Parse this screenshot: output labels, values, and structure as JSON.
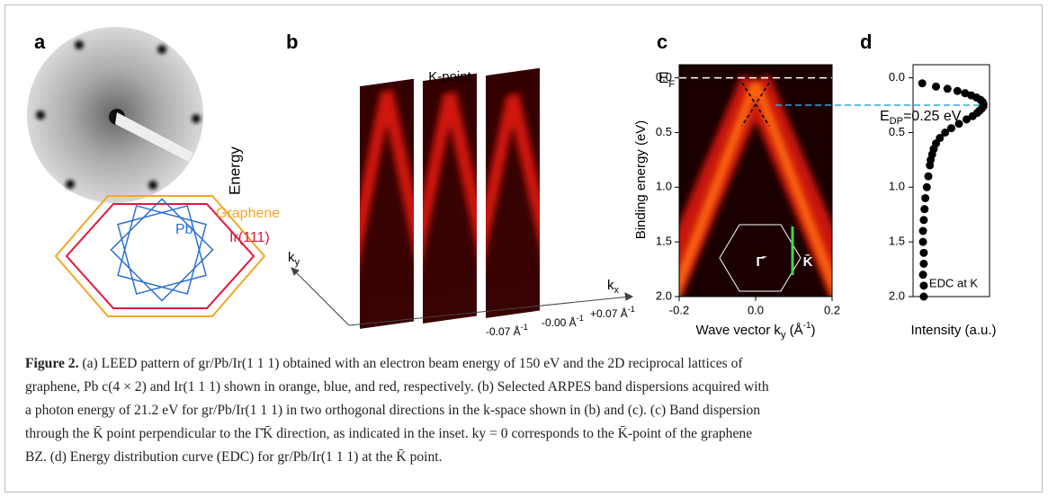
{
  "figure": {
    "panel_labels": [
      "a",
      "b",
      "c",
      "d"
    ],
    "a": {
      "graphene": "Graphene",
      "iridium": "Ir(111)",
      "lead": "Pb"
    },
    "b": {
      "kpoint": "K-point",
      "energy": "Energy",
      "ky": {
        "main": "k",
        "sub": "y"
      },
      "kx": {
        "main": "k",
        "sub": "x"
      },
      "slab_labels": [
        {
          "main": "-0.07 Å",
          "sup": "-1"
        },
        {
          "main": "-0.00 Å",
          "sup": "-1"
        },
        {
          "main": "+0.07 Å",
          "sup": "-1"
        }
      ]
    },
    "c": {
      "ef": {
        "main": "E",
        "sub": "F"
      },
      "ylabel": "Binding energy (eV)",
      "xlabel": {
        "main": "Wave vector k",
        "sub": "y",
        "rest": " (Å",
        "sup": "-1",
        "end": ")"
      },
      "ylim": [
        -0.12,
        2.0
      ],
      "xlim": [
        -0.2,
        0.2
      ],
      "yticks": [
        {
          "value": 0,
          "label": "0.0"
        },
        {
          "value": 0.5,
          "label": "0.5"
        },
        {
          "value": 1,
          "label": "1.0"
        },
        {
          "value": 1.5,
          "label": "1.5"
        },
        {
          "value": 2,
          "label": "2.0"
        }
      ],
      "xticks": [
        {
          "value": -0.2,
          "label": "-0.2"
        },
        {
          "value": 0,
          "label": "0.0"
        },
        {
          "value": 0.2,
          "label": "0.2"
        }
      ],
      "fermi_level": 0,
      "gamma": "Γ̄",
      "kbar": "K̄"
    },
    "d": {
      "edp": {
        "main": "E",
        "sub": "DP",
        "rest": "=0.25 eV"
      },
      "dirac_energy": 0.25,
      "inner": "EDC at K",
      "xlabel": "Intensity (a.u.)",
      "ylim": [
        -0.12,
        2.0
      ],
      "xlim": [
        0,
        1
      ],
      "yticks": [
        {
          "value": 0,
          "label": "0.0"
        },
        {
          "value": 0.5,
          "label": "0.5"
        },
        {
          "value": 1,
          "label": "1.0"
        },
        {
          "value": 1.5,
          "label": "1.5"
        },
        {
          "value": 2,
          "label": "2.0"
        }
      ],
      "energy": [
        0.05,
        0.08,
        0.1,
        0.12,
        0.14,
        0.16,
        0.18,
        0.2,
        0.22,
        0.24,
        0.26,
        0.28,
        0.3,
        0.32,
        0.35,
        0.38,
        0.42,
        0.46,
        0.5,
        0.55,
        0.6,
        0.65,
        0.7,
        0.75,
        0.8,
        0.9,
        1.0,
        1.1,
        1.2,
        1.3,
        1.4,
        1.5,
        1.6,
        1.7,
        1.8,
        1.9,
        2.0
      ],
      "intensity": [
        0.12,
        0.3,
        0.45,
        0.58,
        0.68,
        0.76,
        0.83,
        0.88,
        0.91,
        0.92,
        0.92,
        0.9,
        0.87,
        0.84,
        0.78,
        0.7,
        0.6,
        0.5,
        0.42,
        0.35,
        0.3,
        0.27,
        0.25,
        0.23,
        0.22,
        0.2,
        0.18,
        0.16,
        0.15,
        0.14,
        0.13,
        0.13,
        0.14,
        0.14,
        0.13,
        0.14,
        0.14
      ]
    }
  },
  "caption": {
    "label": "Figure 2.",
    "lines": [
      "(a) LEED pattern of gr/Pb/Ir(1 1 1) obtained with an electron beam energy of 150 eV and the 2D reciprocal lattices of",
      "graphene, Pb c(4 × 2) and Ir(1 1 1) shown in orange, blue, and red, respectively. (b) Selected ARPES band dispersions acquired with",
      "a photon energy of 21.2 eV for gr/Pb/Ir(1 1 1) in two orthogonal directions in the k-space shown in (b) and (c). (c) Band dispersion",
      "through the K̄ point perpendicular to the Γ̄K̄ direction, as indicated in the inset. ky = 0 corresponds to the K̄-point of the graphene",
      "BZ. (d) Energy distribution curve (EDC) for gr/Pb/Ir(1 1 1) at the K̄ point."
    ]
  }
}
